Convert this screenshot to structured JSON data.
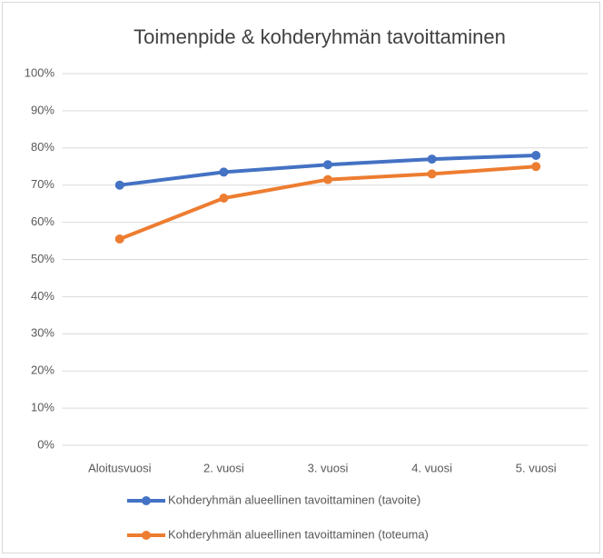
{
  "chart_data": {
    "type": "line",
    "title": "Toimenpide &  kohderyhmän tavoittaminen",
    "categories": [
      "Aloitusvuosi",
      "2. vuosi",
      "3. vuosi",
      "4. vuosi",
      "5. vuosi"
    ],
    "series": [
      {
        "name": "Kohderyhmän alueellinen  tavoittaminen (tavoite)",
        "color": "#4472c4",
        "values": [
          70,
          73.5,
          75.5,
          77,
          78
        ]
      },
      {
        "name": "Kohderyhmän alueellinen  tavoittaminen (toteuma)",
        "color": "#ed7d31",
        "values": [
          55.5,
          66.5,
          71.5,
          73,
          75
        ]
      }
    ],
    "ylim": [
      0,
      100
    ],
    "yticks": [
      {
        "value": 0,
        "label": "0%"
      },
      {
        "value": 10,
        "label": "10%"
      },
      {
        "value": 20,
        "label": "20%"
      },
      {
        "value": 30,
        "label": "30%"
      },
      {
        "value": 40,
        "label": "40%"
      },
      {
        "value": 50,
        "label": "50%"
      },
      {
        "value": 60,
        "label": "60%"
      },
      {
        "value": 70,
        "label": "70%"
      },
      {
        "value": 80,
        "label": "80%"
      },
      {
        "value": 90,
        "label": "90%"
      },
      {
        "value": 100,
        "label": "100%"
      }
    ],
    "grid": true,
    "legend": "bottom"
  }
}
